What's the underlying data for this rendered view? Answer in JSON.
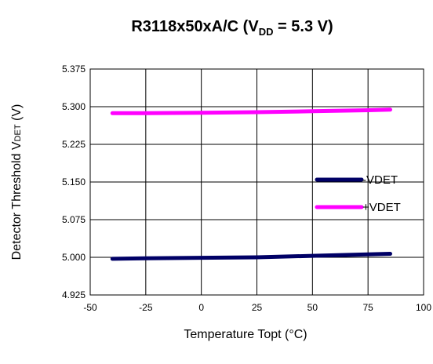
{
  "chart_data": {
    "type": "line",
    "title": {
      "prefix": "R3118x50xA/C (V",
      "sub": "DD",
      "suffix": " = 5.3 V)"
    },
    "xlabel": "Temperature Topt (°C)",
    "ylabel": {
      "prefix": "Detector Threshold V",
      "sub": "DET",
      "suffix": " (V)"
    },
    "xlim": [
      -50,
      100
    ],
    "ylim": [
      4.925,
      5.375
    ],
    "xticks": [
      -50,
      -25,
      0,
      25,
      50,
      75,
      100
    ],
    "xtick_labels": [
      "-50",
      "-25",
      "0",
      "25",
      "50",
      "75",
      "100"
    ],
    "yticks": [
      4.925,
      5.0,
      5.075,
      5.15,
      5.225,
      5.3,
      5.375
    ],
    "ytick_labels": [
      "4.925",
      "5.000",
      "5.075",
      "5.150",
      "5.225",
      "5.300",
      "5.375"
    ],
    "grid": true,
    "legend_position": "right-middle",
    "series": [
      {
        "name": "-VDET",
        "color": "#000066",
        "x": [
          -40,
          -25,
          0,
          25,
          50,
          75,
          85
        ],
        "y": [
          4.997,
          4.998,
          4.999,
          5.0,
          5.003,
          5.006,
          5.007
        ]
      },
      {
        "name": "+VDET",
        "color": "#ff00ff",
        "x": [
          -40,
          -25,
          0,
          25,
          50,
          75,
          85
        ],
        "y": [
          5.287,
          5.287,
          5.288,
          5.289,
          5.291,
          5.293,
          5.294
        ]
      }
    ]
  }
}
